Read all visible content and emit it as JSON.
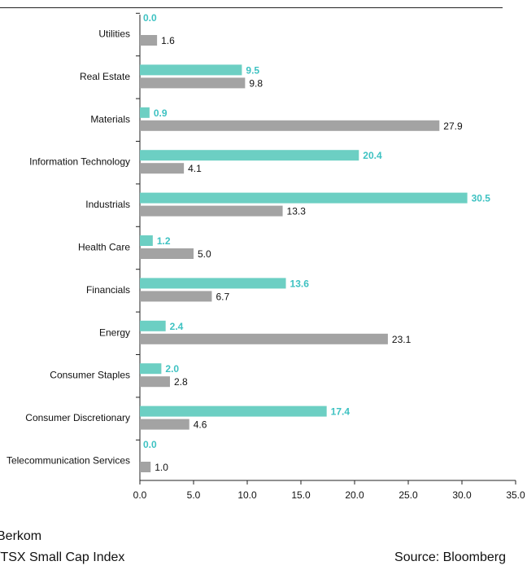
{
  "chart_data": {
    "type": "bar",
    "orientation": "horizontal",
    "categories": [
      "Utilities",
      "Real Estate",
      "Materials",
      "Information Technology",
      "Industrials",
      "Health Care",
      "Financials",
      "Energy",
      "Consumer Staples",
      "Consumer Discretionary",
      "Telecommunication Services"
    ],
    "series": [
      {
        "name": "Berkom",
        "color": "#6ccfc3",
        "label_color": "#3ec2c2",
        "values": [
          0.0,
          9.5,
          0.9,
          20.4,
          30.5,
          1.2,
          13.6,
          2.4,
          2.0,
          17.4,
          0.0
        ],
        "labels": [
          "0.0",
          "9.5",
          "0.9",
          "20.4",
          "30.5",
          "1.2",
          "13.6",
          "2.4",
          "2.0",
          "17.4",
          "0.0"
        ]
      },
      {
        "name": "/TSX Small Cap Index",
        "color": "#a3a3a3",
        "label_color": "#111111",
        "values": [
          1.6,
          9.8,
          27.9,
          4.1,
          13.3,
          5.0,
          6.7,
          23.1,
          2.8,
          4.6,
          1.0
        ],
        "labels": [
          "1.6",
          "9.8",
          "27.9",
          "4.1",
          "13.3",
          "5.0",
          "6.7",
          "23.1",
          "2.8",
          "4.6",
          "1.0"
        ]
      }
    ],
    "x_ticks": [
      "0.0",
      "5.0",
      "10.0",
      "15.0",
      "20.0",
      "25.0",
      "30.0",
      "35.0"
    ],
    "xlim": [
      0,
      35
    ],
    "grid": false,
    "legend_placement": "bottom-left"
  },
  "legend": {
    "series_a": "Berkom",
    "series_b": "/TSX Small Cap Index"
  },
  "source": "Source: Bloomberg"
}
